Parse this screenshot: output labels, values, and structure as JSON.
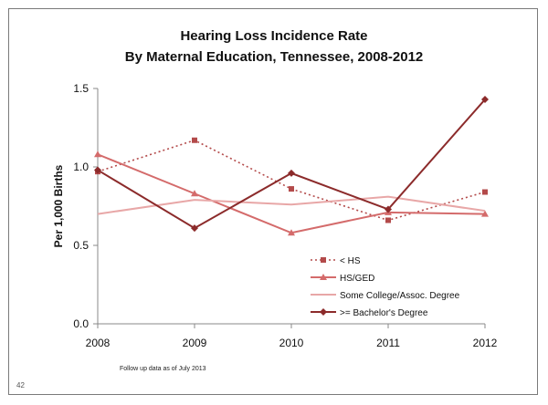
{
  "slide_number": "42",
  "footnote": "Follow up data as of July 2013",
  "chart_data": {
    "type": "line",
    "title_lines": [
      "Hearing Loss Incidence Rate",
      "By Maternal Education, Tennessee, 2008-2012"
    ],
    "xlabel": "",
    "ylabel": "Per 1,000 Births",
    "x": [
      "2008",
      "2009",
      "2010",
      "2011",
      "2012"
    ],
    "ylim": [
      0,
      1.5
    ],
    "yticks": [
      "0.0",
      "0.5",
      "1.0",
      "1.5"
    ],
    "grid": false,
    "legend_position": "bottom-center",
    "series": [
      {
        "name": "< HS",
        "values": [
          0.97,
          1.17,
          0.86,
          0.66,
          0.84
        ],
        "color": "#b34a4a",
        "dash": "dotted",
        "marker": "square"
      },
      {
        "name": "HS/GED",
        "values": [
          1.08,
          0.83,
          0.58,
          0.71,
          0.7
        ],
        "color": "#d46b6b",
        "dash": "solid",
        "marker": "triangle"
      },
      {
        "name": "Some College/Assoc. Degree",
        "values": [
          0.7,
          0.79,
          0.76,
          0.81,
          0.72
        ],
        "color": "#e8a7a7",
        "dash": "solid",
        "marker": "none"
      },
      {
        "name": ">= Bachelor's Degree",
        "values": [
          0.98,
          0.61,
          0.96,
          0.73,
          1.43
        ],
        "color": "#8c2b2b",
        "dash": "solid",
        "marker": "diamond"
      }
    ]
  }
}
